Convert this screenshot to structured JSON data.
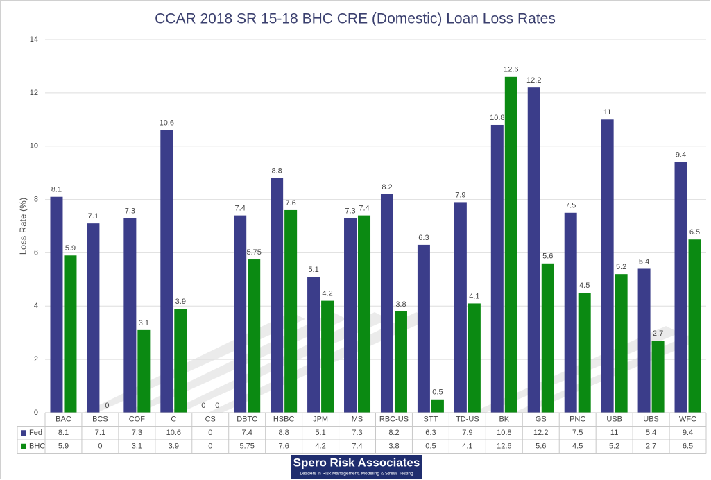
{
  "chart_data": {
    "type": "bar",
    "title": "CCAR 2018 SR 15-18 BHC CRE (Domestic) Loan Loss Rates",
    "y_label": "Loss Rate (%)",
    "categories": [
      "BAC",
      "BCS",
      "COF",
      "C",
      "CS",
      "DBTC",
      "HSBC",
      "JPM",
      "MS",
      "RBC-US",
      "STT",
      "TD-US",
      "BK",
      "GS",
      "PNC",
      "USB",
      "UBS",
      "WFC"
    ],
    "series": [
      {
        "name": "Fed",
        "color": "#3b3d8a",
        "values": [
          8.1,
          7.1,
          7.3,
          10.6,
          0,
          7.4,
          8.8,
          5.1,
          7.3,
          8.2,
          6.3,
          7.9,
          10.8,
          12.2,
          7.5,
          11,
          5.4,
          9.4
        ]
      },
      {
        "name": "BHC",
        "color": "#0b8a12",
        "values": [
          5.9,
          0,
          3.1,
          3.9,
          0,
          5.75,
          7.6,
          4.2,
          7.4,
          3.8,
          0.5,
          4.1,
          12.6,
          5.6,
          4.5,
          5.2,
          2.7,
          6.5
        ]
      }
    ],
    "ylim": [
      0,
      14
    ],
    "yticks": [
      0,
      2,
      4,
      6,
      8,
      10,
      12,
      14
    ],
    "grid": true,
    "data_table": true
  },
  "logo": {
    "name": "Spero Risk Associates",
    "tagline": "Leaders in Risk Management, Modeling & Stress Testing"
  }
}
